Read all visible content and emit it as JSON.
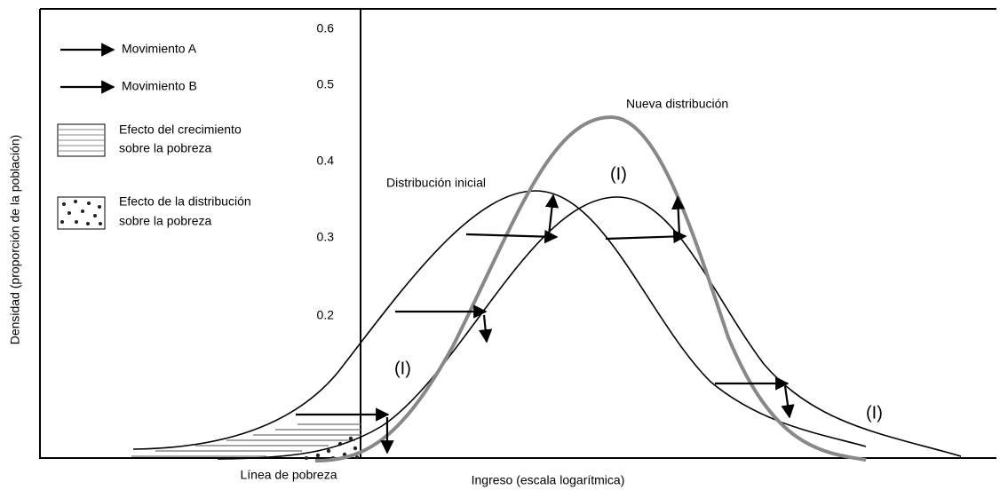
{
  "legend": [
    {
      "label": "Movimiento A"
    },
    {
      "label": "Movimiento B"
    },
    {
      "lines": [
        "Efecto del crecimiento",
        "sobre la pobreza"
      ]
    },
    {
      "lines": [
        "Efecto de la distribución",
        "sobre la pobreza"
      ]
    }
  ],
  "y_axis": {
    "label": "Densidad (proporción de la población)",
    "ticks": [
      "0.6",
      "0.5",
      "0.4",
      "0.3",
      "0.2"
    ]
  },
  "x_axis": {
    "label": "Ingreso (escala logarítmica)",
    "poverty_line": "Línea de pobreza"
  },
  "curves": {
    "new": "Nueva distribución",
    "initial": "Distribución inicial",
    "shifted_marks": [
      "(I)",
      "(I)",
      "(I)"
    ]
  }
}
